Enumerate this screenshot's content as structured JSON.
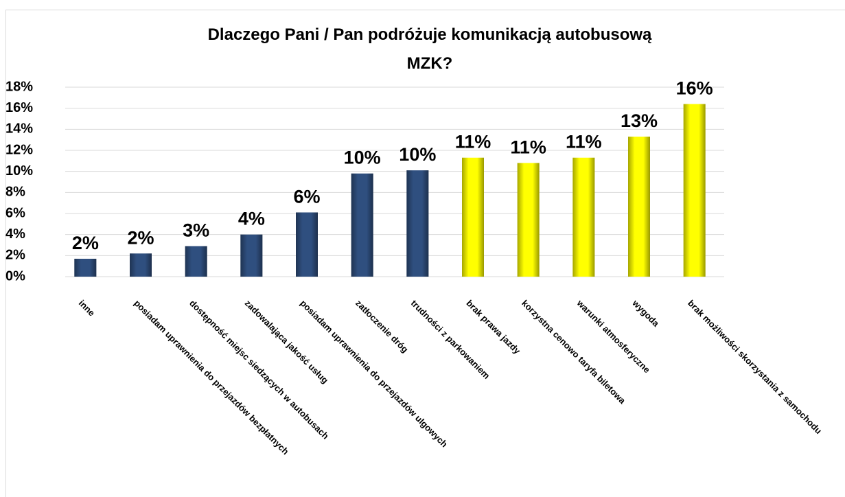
{
  "chart_data": {
    "type": "bar",
    "title": [
      "Dlaczego Pani / Pan podróżuje komunikacją autobusową",
      "MZK?"
    ],
    "categories": [
      "inne",
      "posiadam uprawnienia do przejazdów bezpłatnych",
      "dostępność miejsc siedzących w autobusach",
      "zadowalająca jakość usług",
      "posiadam uprawnienia do przejazdów ulgowych",
      "zatłoczenie dróg",
      "trudności z parkowaniem",
      "brak prawa jazdy",
      "korzystna cenowo taryfa biletowa",
      "warunki atmosferyczne",
      "wygoda",
      "brak możliwości skorzystania z samochodu"
    ],
    "values": [
      1.7,
      2.2,
      2.9,
      4.0,
      6.1,
      9.8,
      10.1,
      11.3,
      10.8,
      11.3,
      13.3,
      16.4
    ],
    "value_labels": [
      "2%",
      "2%",
      "3%",
      "4%",
      "6%",
      "10%",
      "10%",
      "11%",
      "11%",
      "11%",
      "13%",
      "16%"
    ],
    "colors": [
      "#2f4f7f",
      "#2f4f7f",
      "#2f4f7f",
      "#2f4f7f",
      "#2f4f7f",
      "#2f4f7f",
      "#2f4f7f",
      "#ffff00",
      "#ffff00",
      "#ffff00",
      "#ffff00",
      "#ffff00"
    ],
    "ylim": [
      0,
      18
    ],
    "yticks": [
      {
        "value": 0,
        "label": "0%"
      },
      {
        "value": 2,
        "label": "2%"
      },
      {
        "value": 4,
        "label": "4%"
      },
      {
        "value": 6,
        "label": "6%"
      },
      {
        "value": 8,
        "label": "8%"
      },
      {
        "value": 10,
        "label": "10%"
      },
      {
        "value": 12,
        "label": "12%"
      },
      {
        "value": 14,
        "label": "14%"
      },
      {
        "value": 16,
        "label": "16%"
      },
      {
        "value": 18,
        "label": "18%"
      }
    ],
    "grid": true
  }
}
